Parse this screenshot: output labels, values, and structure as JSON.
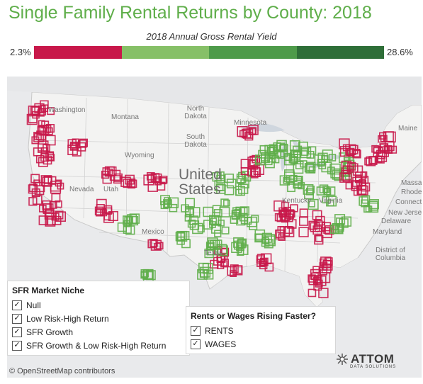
{
  "title": "Single Family Rental Returns by County: 2018",
  "color_legend": {
    "title": "2018 Annual Gross Rental Yield",
    "min_label": "2.3%",
    "max_label": "28.6%",
    "segments": [
      {
        "color": "#c8184a",
        "weight": 25
      },
      {
        "color": "#86c067",
        "weight": 25
      },
      {
        "color": "#4e9b4a",
        "weight": 25
      },
      {
        "color": "#2e6e38",
        "weight": 25
      }
    ]
  },
  "map": {
    "country_label": "United States",
    "state_labels": [
      "Washington",
      "Montana",
      "North Dakota",
      "Minnesota",
      "South Dakota",
      "Wyoming",
      "Nevada",
      "Utah",
      "Mexico",
      "Texas",
      "Kentucky",
      "Virginia",
      "Maine",
      "Connecticut",
      "Rhode Island",
      "Massachusetts",
      "New Jersey",
      "Delaware",
      "Maryland",
      "District of Columbia"
    ],
    "attribution": "© OpenStreetMap contributors"
  },
  "filter_niche": {
    "title": "SFR Market Niche",
    "options": [
      {
        "label": "Null",
        "checked": true
      },
      {
        "label": "Low Risk-High Return",
        "checked": true
      },
      {
        "label": "SFR Growth",
        "checked": true
      },
      {
        "label": "SFR Growth & Low Risk-High Return",
        "checked": true
      }
    ]
  },
  "filter_rents": {
    "title": "Rents or Wages Rising Faster?",
    "options": [
      {
        "label": "RENTS",
        "checked": true
      },
      {
        "label": "WAGES",
        "checked": true
      }
    ]
  },
  "brand": {
    "name": "ATTOM",
    "tagline": "DATA SOLUTIONS"
  },
  "colors": {
    "red": "#c8184a",
    "green": "#5fae4a"
  }
}
